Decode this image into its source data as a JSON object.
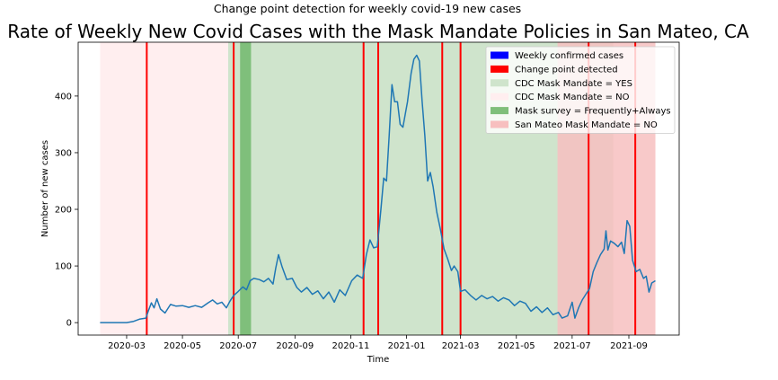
{
  "chart_data": {
    "type": "line",
    "suptitle": "Change point detection for weekly covid-19 new cases",
    "title": "Rate of Weekly New Covid Cases with the Mask Mandate Policies in San Mateo, CA",
    "xlabel": "Time",
    "ylabel": "Number of new cases",
    "xlim": [
      "2020-01-08",
      "2021-10-26"
    ],
    "ylim": [
      -22,
      495
    ],
    "x_ticks": [
      "2020-03-01",
      "2020-05-01",
      "2020-07-01",
      "2020-09-01",
      "2020-11-01",
      "2021-01-01",
      "2021-03-01",
      "2021-05-01",
      "2021-07-01",
      "2021-09-01"
    ],
    "x_tick_labels": [
      "2020-03",
      "2020-05",
      "2020-07",
      "2020-09",
      "2020-11",
      "2021-01",
      "2021-03",
      "2021-05",
      "2021-07",
      "2021-09"
    ],
    "y_ticks": [
      0,
      100,
      200,
      300,
      400
    ],
    "grid": false,
    "legend_position": "top-right",
    "legend": [
      {
        "label": "Weekly confirmed cases",
        "color": "#0000ff"
      },
      {
        "label": "Change point detected",
        "color": "#ff0000"
      },
      {
        "label": "CDC Mask Mandate = YES",
        "color": "#cfe4cc"
      },
      {
        "label": "CDC Mask Mandate = NO",
        "color": "#ffeeef"
      },
      {
        "label": "Mask survey = Frequently+Always",
        "color": "#7fbf7b"
      },
      {
        "label": "San Mateo Mask Mandate = NO",
        "color": "#f7bfbf"
      }
    ],
    "line_color": "#1f77b4",
    "change_points": [
      "2020-03-23",
      "2020-06-26",
      "2020-11-15",
      "2020-12-01",
      "2021-02-09",
      "2021-03-01",
      "2021-07-19",
      "2021-09-08"
    ],
    "spans": [
      {
        "legend": "CDC Mask Mandate = NO",
        "start": "2020-02-01",
        "end": "2020-06-20",
        "color": "#ffeeef"
      },
      {
        "legend": "CDC Mask Mandate = YES",
        "start": "2020-06-20",
        "end": "2021-06-15",
        "color": "#cfe4cc"
      },
      {
        "legend": "Mask survey = Frequently+Always",
        "start": "2020-07-03",
        "end": "2020-07-15",
        "color": "#7fbf7b"
      },
      {
        "legend": "CDC Mask Mandate = YES",
        "start": "2021-06-15",
        "end": "2021-08-15",
        "color": "#cfe4cc"
      },
      {
        "legend": "San Mateo Mask Mandate = NO",
        "start": "2021-06-15",
        "end": "2021-09-30",
        "color": "#f7bfbf"
      }
    ],
    "series": [
      {
        "points": [
          [
            "2020-02-01",
            0
          ],
          [
            "2020-02-15",
            0
          ],
          [
            "2020-03-01",
            0
          ],
          [
            "2020-03-08",
            2
          ],
          [
            "2020-03-15",
            6
          ],
          [
            "2020-03-22",
            8
          ],
          [
            "2020-03-25",
            22
          ],
          [
            "2020-03-28",
            35
          ],
          [
            "2020-03-31",
            26
          ],
          [
            "2020-04-03",
            42
          ],
          [
            "2020-04-07",
            24
          ],
          [
            "2020-04-12",
            17
          ],
          [
            "2020-04-18",
            32
          ],
          [
            "2020-04-24",
            29
          ],
          [
            "2020-05-01",
            30
          ],
          [
            "2020-05-08",
            27
          ],
          [
            "2020-05-15",
            30
          ],
          [
            "2020-05-22",
            27
          ],
          [
            "2020-05-29",
            35
          ],
          [
            "2020-06-03",
            40
          ],
          [
            "2020-06-08",
            33
          ],
          [
            "2020-06-13",
            36
          ],
          [
            "2020-06-18",
            26
          ],
          [
            "2020-06-22",
            38
          ],
          [
            "2020-06-26",
            48
          ],
          [
            "2020-07-01",
            55
          ],
          [
            "2020-07-06",
            63
          ],
          [
            "2020-07-10",
            58
          ],
          [
            "2020-07-14",
            74
          ],
          [
            "2020-07-18",
            78
          ],
          [
            "2020-07-24",
            76
          ],
          [
            "2020-07-29",
            72
          ],
          [
            "2020-08-03",
            78
          ],
          [
            "2020-08-08",
            68
          ],
          [
            "2020-08-11",
            96
          ],
          [
            "2020-08-14",
            120
          ],
          [
            "2020-08-18",
            98
          ],
          [
            "2020-08-23",
            76
          ],
          [
            "2020-08-29",
            78
          ],
          [
            "2020-09-03",
            62
          ],
          [
            "2020-09-08",
            54
          ],
          [
            "2020-09-14",
            62
          ],
          [
            "2020-09-20",
            50
          ],
          [
            "2020-09-26",
            56
          ],
          [
            "2020-10-02",
            42
          ],
          [
            "2020-10-08",
            54
          ],
          [
            "2020-10-14",
            36
          ],
          [
            "2020-10-20",
            58
          ],
          [
            "2020-10-26",
            48
          ],
          [
            "2020-11-02",
            74
          ],
          [
            "2020-11-08",
            84
          ],
          [
            "2020-11-14",
            78
          ],
          [
            "2020-11-18",
            120
          ],
          [
            "2020-11-22",
            146
          ],
          [
            "2020-11-26",
            132
          ],
          [
            "2020-11-30",
            134
          ],
          [
            "2020-12-04",
            200
          ],
          [
            "2020-12-07",
            255
          ],
          [
            "2020-12-10",
            250
          ],
          [
            "2020-12-13",
            330
          ],
          [
            "2020-12-16",
            420
          ],
          [
            "2020-12-19",
            390
          ],
          [
            "2020-12-22",
            390
          ],
          [
            "2020-12-25",
            350
          ],
          [
            "2020-12-28",
            345
          ],
          [
            "2021-01-02",
            390
          ],
          [
            "2021-01-06",
            440
          ],
          [
            "2021-01-09",
            465
          ],
          [
            "2021-01-12",
            472
          ],
          [
            "2021-01-15",
            462
          ],
          [
            "2021-01-18",
            390
          ],
          [
            "2021-01-21",
            330
          ],
          [
            "2021-01-24",
            250
          ],
          [
            "2021-01-27",
            265
          ],
          [
            "2021-01-30",
            240
          ],
          [
            "2021-02-03",
            195
          ],
          [
            "2021-02-07",
            165
          ],
          [
            "2021-02-11",
            130
          ],
          [
            "2021-02-15",
            112
          ],
          [
            "2021-02-19",
            92
          ],
          [
            "2021-02-22",
            100
          ],
          [
            "2021-02-26",
            90
          ],
          [
            "2021-03-01",
            55
          ],
          [
            "2021-03-06",
            58
          ],
          [
            "2021-03-12",
            48
          ],
          [
            "2021-03-18",
            40
          ],
          [
            "2021-03-24",
            48
          ],
          [
            "2021-03-30",
            42
          ],
          [
            "2021-04-05",
            46
          ],
          [
            "2021-04-11",
            38
          ],
          [
            "2021-04-17",
            44
          ],
          [
            "2021-04-23",
            40
          ],
          [
            "2021-04-29",
            30
          ],
          [
            "2021-05-05",
            38
          ],
          [
            "2021-05-11",
            34
          ],
          [
            "2021-05-17",
            20
          ],
          [
            "2021-05-23",
            28
          ],
          [
            "2021-05-29",
            18
          ],
          [
            "2021-06-04",
            26
          ],
          [
            "2021-06-10",
            14
          ],
          [
            "2021-06-16",
            18
          ],
          [
            "2021-06-20",
            8
          ],
          [
            "2021-06-26",
            12
          ],
          [
            "2021-07-01",
            36
          ],
          [
            "2021-07-04",
            8
          ],
          [
            "2021-07-08",
            26
          ],
          [
            "2021-07-12",
            40
          ],
          [
            "2021-07-16",
            50
          ],
          [
            "2021-07-20",
            60
          ],
          [
            "2021-07-24",
            90
          ],
          [
            "2021-07-28",
            106
          ],
          [
            "2021-08-01",
            120
          ],
          [
            "2021-08-05",
            130
          ],
          [
            "2021-08-07",
            162
          ],
          [
            "2021-08-09",
            128
          ],
          [
            "2021-08-12",
            144
          ],
          [
            "2021-08-16",
            140
          ],
          [
            "2021-08-20",
            134
          ],
          [
            "2021-08-24",
            142
          ],
          [
            "2021-08-27",
            122
          ],
          [
            "2021-08-30",
            180
          ],
          [
            "2021-09-02",
            170
          ],
          [
            "2021-09-05",
            110
          ],
          [
            "2021-09-09",
            90
          ],
          [
            "2021-09-13",
            94
          ],
          [
            "2021-09-17",
            78
          ],
          [
            "2021-09-20",
            82
          ],
          [
            "2021-09-23",
            54
          ],
          [
            "2021-09-26",
            70
          ],
          [
            "2021-09-30",
            74
          ]
        ]
      }
    ]
  }
}
